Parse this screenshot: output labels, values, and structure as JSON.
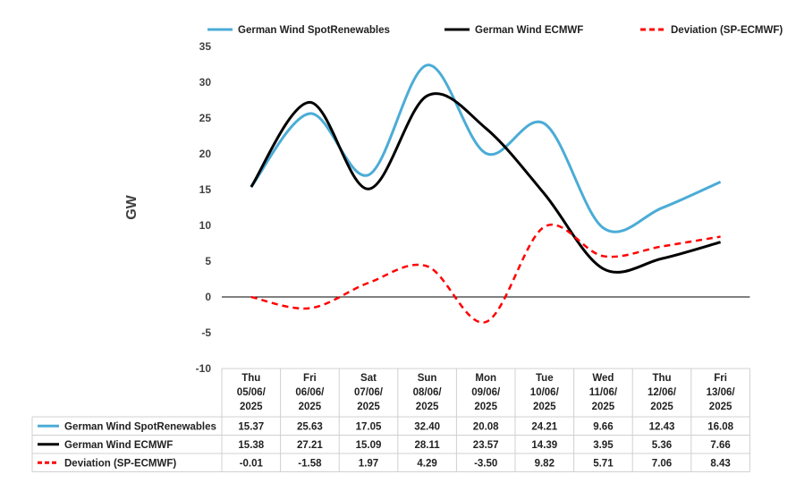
{
  "chart_data": {
    "type": "line",
    "ylabel": "GW",
    "ylim": [
      -10,
      35
    ],
    "yticks": [
      35,
      30,
      25,
      20,
      15,
      10,
      5,
      0,
      -5,
      -10
    ],
    "grid": false,
    "legend": "top",
    "categories": [
      "Thu\n05/06/\n2025",
      "Fri\n06/06/\n2025",
      "Sat\n07/06/\n2025",
      "Sun\n08/06/\n2025",
      "Mon\n09/06/\n2025",
      "Tue\n10/06/\n2025",
      "Wed\n11/06/\n2025",
      "Thu\n12/06/\n2025",
      "Fri\n13/06/\n2025"
    ],
    "series": [
      {
        "name": "German Wind SpotRenewables",
        "color": "#4BACD6",
        "dash": "solid",
        "values": [
          15.37,
          25.63,
          17.05,
          32.4,
          20.08,
          24.21,
          9.66,
          12.43,
          16.08
        ],
        "labels": [
          "15.37",
          "25.63",
          "17.05",
          "32.40",
          "20.08",
          "24.21",
          "9.66",
          "12.43",
          "16.08"
        ]
      },
      {
        "name": "German Wind ECMWF",
        "color": "#000000",
        "dash": "solid",
        "values": [
          15.38,
          27.21,
          15.09,
          28.11,
          23.57,
          14.39,
          3.95,
          5.36,
          7.66
        ],
        "labels": [
          "15.38",
          "27.21",
          "15.09",
          "28.11",
          "23.57",
          "14.39",
          "3.95",
          "5.36",
          "7.66"
        ]
      },
      {
        "name": "Deviation (SP-ECMWF)",
        "color": "#FF0000",
        "dash": "dashed",
        "values": [
          -0.01,
          -1.58,
          1.97,
          4.29,
          -3.5,
          9.82,
          5.71,
          7.06,
          8.43
        ],
        "labels": [
          "-0.01",
          "-1.58",
          "1.97",
          "4.29",
          "-3.50",
          "9.82",
          "5.71",
          "7.06",
          "8.43"
        ]
      }
    ]
  }
}
